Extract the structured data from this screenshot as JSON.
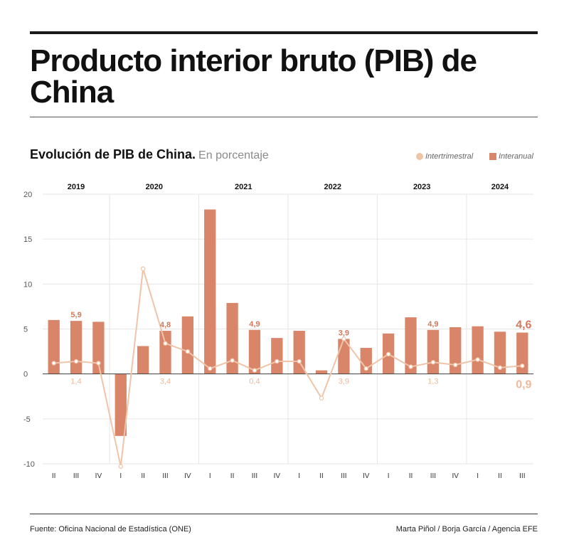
{
  "header": {
    "title": "Producto interior bruto (PIB) de China",
    "subtitle": "Evolución de PIB de China.",
    "subtitle_unit": "En porcentaje"
  },
  "legend": {
    "line_label": "Intertrimestral",
    "bar_label": "Interanual"
  },
  "footer": {
    "source": "Fuente: Oficina Nacional de Estadística (ONE)",
    "credit": "Marta Piñol / Borja García / Agencia EFE"
  },
  "colors": {
    "bar": "#d9856a",
    "line": "#f0c4a8",
    "bar_label": "#d2795c",
    "line_label": "#efb99a",
    "grid": "#e6e6e6",
    "zero_line": "#444444"
  },
  "chart_data": {
    "type": "bar",
    "ylim": [
      -10,
      20
    ],
    "y_ticks": [
      20,
      15,
      10,
      5,
      0,
      -5,
      -10
    ],
    "y_tick_labels": [
      "20",
      "15",
      "10",
      "5",
      "0",
      "-5",
      "-10"
    ],
    "grid": true,
    "legend_position": "top-right",
    "years": [
      {
        "label": "2019",
        "quarters": 3
      },
      {
        "label": "2020",
        "quarters": 4
      },
      {
        "label": "2021",
        "quarters": 4
      },
      {
        "label": "2022",
        "quarters": 4
      },
      {
        "label": "2023",
        "quarters": 4
      },
      {
        "label": "2024",
        "quarters": 3
      }
    ],
    "categories": [
      "II",
      "III",
      "IV",
      "I",
      "II",
      "III",
      "IV",
      "I",
      "II",
      "III",
      "IV",
      "I",
      "II",
      "III",
      "IV",
      "I",
      "II",
      "III",
      "IV",
      "I",
      "II",
      "III"
    ],
    "series": [
      {
        "name": "Interanual",
        "type": "bar",
        "values": [
          6.0,
          5.9,
          5.8,
          -6.9,
          3.1,
          4.8,
          6.4,
          18.3,
          7.9,
          4.9,
          4.0,
          4.8,
          0.4,
          3.9,
          2.9,
          4.5,
          6.3,
          4.9,
          5.2,
          5.3,
          4.7,
          4.6
        ]
      },
      {
        "name": "Intertrimestral",
        "type": "line",
        "values": [
          1.2,
          1.4,
          1.2,
          -10.3,
          11.7,
          3.4,
          2.5,
          0.6,
          1.5,
          0.4,
          1.4,
          1.4,
          -2.7,
          3.9,
          0.6,
          2.2,
          0.8,
          1.3,
          1.0,
          1.6,
          0.7,
          0.9
        ]
      }
    ],
    "bar_annotations": [
      {
        "index": 1,
        "text": "5,9"
      },
      {
        "index": 5,
        "text": "4,8"
      },
      {
        "index": 9,
        "text": "4,9"
      },
      {
        "index": 13,
        "text": "3,9"
      },
      {
        "index": 17,
        "text": "4,9"
      },
      {
        "index": 21,
        "text": "4,6",
        "emphasis": true
      }
    ],
    "line_annotations": [
      {
        "index": 1,
        "text": "1,4"
      },
      {
        "index": 5,
        "text": "3,4"
      },
      {
        "index": 9,
        "text": "0,4"
      },
      {
        "index": 13,
        "text": "3,9"
      },
      {
        "index": 17,
        "text": "1,3"
      },
      {
        "index": 21,
        "text": "0,9",
        "emphasis": true
      }
    ]
  }
}
